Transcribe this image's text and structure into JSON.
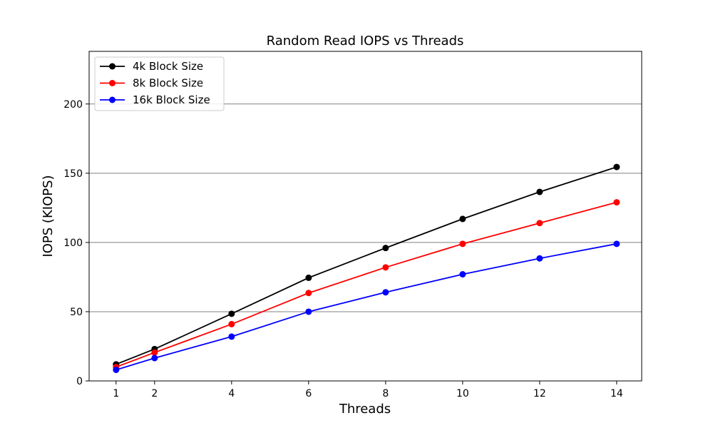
{
  "chart_data": {
    "type": "line",
    "title": "Random Read IOPS vs Threads",
    "xlabel": "Threads",
    "ylabel": "IOPS (KIOPS)",
    "x": [
      1,
      2,
      4,
      6,
      8,
      10,
      12,
      14
    ],
    "xticks": [
      1,
      2,
      4,
      6,
      8,
      10,
      12,
      14
    ],
    "yticks": [
      0,
      50,
      100,
      150,
      200
    ],
    "xlim": [
      0.3,
      14.65
    ],
    "ylim": [
      0,
      238
    ],
    "grid": "horizontal",
    "legend_position": "top-left",
    "series": [
      {
        "name": "4k Block Size",
        "color": "#000000",
        "values": [
          12,
          23,
          48.5,
          74.5,
          96,
          117,
          136.5,
          154.5
        ]
      },
      {
        "name": "8k Block Size",
        "color": "#ff0000",
        "values": [
          10,
          20.5,
          41,
          63.5,
          82,
          99,
          114,
          129
        ]
      },
      {
        "name": "16k Block Size",
        "color": "#0000ff",
        "values": [
          8,
          16.5,
          32,
          50,
          64,
          77,
          88.5,
          99
        ]
      }
    ]
  }
}
